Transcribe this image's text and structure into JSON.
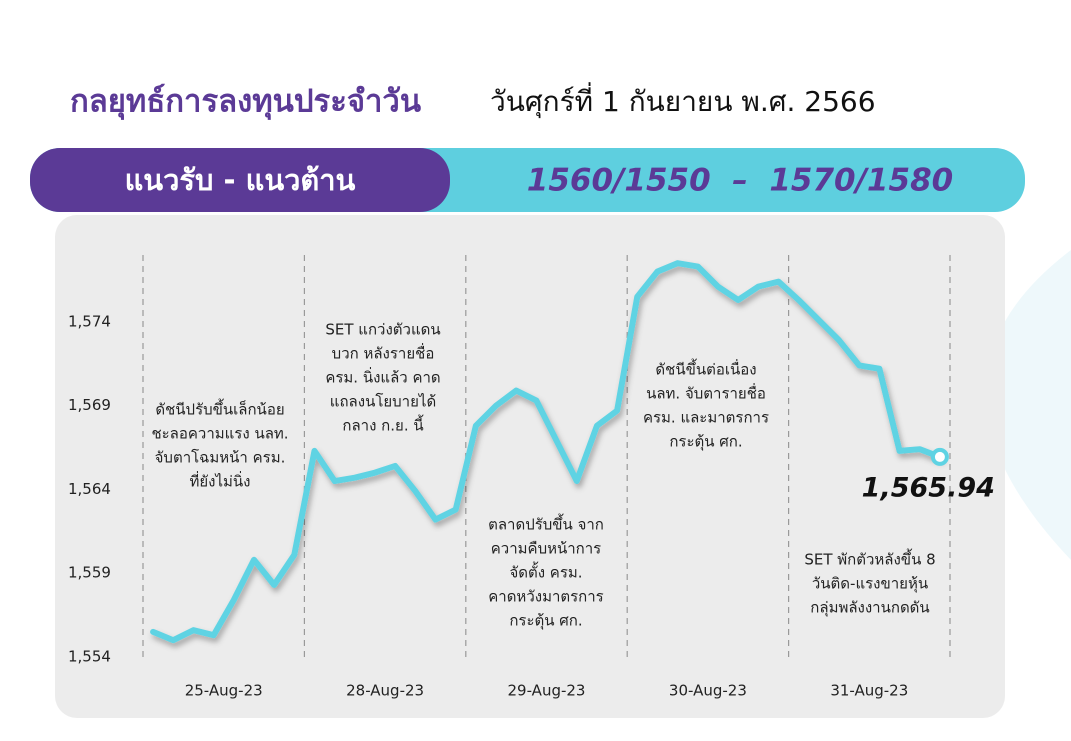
{
  "header": {
    "title": "กลยุทธ์การลงทุนประจำวัน",
    "date": "วันศุกร์ที่ 1 กันยายน พ.ศ. 2566"
  },
  "banner": {
    "label": "แนวรับ - แนวต้าน",
    "levels": "1560/1550  –  1570/1580"
  },
  "chart_data": {
    "type": "line",
    "categories": [
      null,
      null,
      null,
      null,
      "25-Aug-23",
      null,
      null,
      null,
      null,
      null,
      null,
      null,
      "28-Aug-23",
      null,
      null,
      null,
      null,
      null,
      null,
      null,
      "29-Aug-23",
      null,
      null,
      null,
      null,
      null,
      null,
      null,
      "30-Aug-23",
      null,
      null,
      null,
      null,
      null,
      null,
      null,
      "31-Aug-23",
      null,
      null,
      null
    ],
    "series": [
      {
        "color": "#5fd3e3",
        "values": [
          1555.5,
          1555.0,
          1555.6,
          1555.3,
          1557.4,
          1559.8,
          1558.3,
          1560.1,
          1566.3,
          1564.5,
          1564.7,
          1565.0,
          1565.4,
          1563.9,
          1562.2,
          1562.8,
          1567.8,
          1569.0,
          1569.9,
          1569.3,
          1566.9,
          1564.5,
          1567.8,
          1568.7,
          1575.5,
          1577.0,
          1577.5,
          1577.3,
          1576.1,
          1575.3,
          1576.1,
          1576.4,
          1575.3,
          1574.1,
          1572.9,
          1571.4,
          1571.2,
          1566.3,
          1566.4,
          1565.94
        ],
        "value_labels": [
          null,
          null,
          null,
          null,
          null,
          null,
          null,
          null,
          null,
          null,
          null,
          null,
          null,
          null,
          null,
          null,
          null,
          null,
          null,
          null,
          null,
          null,
          null,
          null,
          null,
          null,
          null,
          null,
          null,
          null,
          null,
          null,
          null,
          null,
          null,
          null,
          null,
          null,
          null,
          "1,565.94"
        ]
      }
    ],
    "ylim": [
      1554,
      1578
    ],
    "yticks": [
      {
        "value": 1554,
        "label": "1,554"
      },
      {
        "value": 1559,
        "label": "1,559"
      },
      {
        "value": 1564,
        "label": "1,564"
      },
      {
        "value": 1569,
        "label": "1,569"
      },
      {
        "value": 1574,
        "label": "1,574"
      }
    ],
    "annotations": [
      {
        "lines": [
          "ดัชนีปรับขึ้นเล็กน้อย",
          "ชะลอความแรง นลท.",
          "จับตาโฉมหน้า ครม.",
          "ที่ยังไม่นิ่ง"
        ]
      },
      {
        "lines": [
          "SET แกว่งตัวแดน",
          "บวก หลังรายชื่อ",
          "ครม. นิ่งแล้ว คาด",
          "แถลงนโยบายได้",
          "กลาง ก.ย. นี้"
        ]
      },
      {
        "lines": [
          "ตลาดปรับขึ้น จาก",
          "ความคืบหน้าการ",
          "จัดตั้ง ครม.",
          "คาดหวังมาตรการ",
          "กระตุ้น ศก."
        ]
      },
      {
        "lines": [
          "ดัชนีขึ้นต่อเนื่อง",
          "นลท. จับตารายชื่อ",
          "ครม. และมาตรการ",
          "กระตุ้น ศก."
        ]
      },
      {
        "lines": [
          "SET พักตัวหลังขึ้น 8",
          "วันติด-แรงขายหุ้น",
          "กลุ่มพลังงานกดดัน"
        ]
      }
    ]
  }
}
